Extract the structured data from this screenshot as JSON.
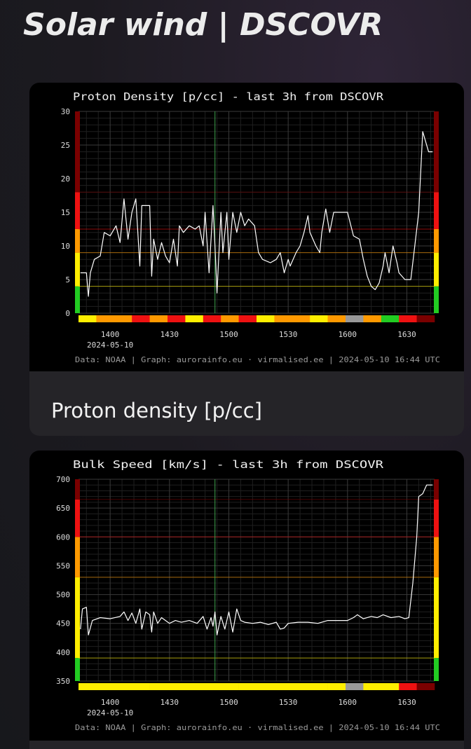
{
  "header": {
    "title": "Solar wind | DSCOVR"
  },
  "cards": [
    {
      "caption": "Proton density [p/cc]"
    }
  ],
  "chart_data": [
    {
      "type": "line",
      "title": "Proton Density [p/cc] - last 3h from DSCOVR",
      "x": [
        825,
        828,
        829,
        830,
        832,
        835,
        837,
        840,
        843,
        845,
        847,
        849,
        851,
        853,
        855,
        856,
        860,
        861,
        862,
        864,
        866,
        868,
        870,
        872,
        874,
        875,
        877,
        880,
        883,
        885,
        887,
        888,
        890,
        892,
        893,
        894,
        896,
        897,
        899,
        900,
        902,
        904,
        906,
        908,
        910,
        913,
        915,
        917,
        921,
        924,
        926,
        928,
        930,
        931,
        934,
        936,
        938,
        940,
        941,
        944,
        946,
        947,
        949,
        951,
        953,
        956,
        960,
        963,
        966,
        968,
        970,
        972,
        974,
        976,
        978,
        979,
        981,
        983,
        985,
        986,
        989,
        992,
        994,
        996,
        998,
        1001,
        1003
      ],
      "values": [
        6,
        6,
        2.5,
        6,
        8,
        8.5,
        12,
        11.5,
        13,
        10.5,
        17,
        11,
        15,
        17,
        7,
        16,
        16,
        5.5,
        11,
        8,
        10.5,
        8.5,
        7.5,
        11,
        7,
        13,
        12,
        13,
        12.5,
        13,
        10,
        15,
        6,
        16,
        10,
        3,
        15,
        9,
        15,
        8,
        15,
        12,
        15,
        13,
        14,
        13,
        9,
        8,
        7.5,
        8,
        9,
        6,
        8,
        7,
        9,
        10,
        12,
        14.5,
        12,
        10,
        9,
        12,
        15.5,
        12,
        15,
        15,
        15,
        11.5,
        11,
        8,
        5.5,
        4,
        3.5,
        4.5,
        7,
        9,
        6,
        10,
        7.5,
        6,
        5,
        5,
        10,
        15,
        27,
        24,
        24
      ],
      "color": "#ffffff",
      "xlim": [
        824,
        1004
      ],
      "xticks": [
        {
          "value": 840,
          "label": "1400"
        },
        {
          "value": 870,
          "label": "1430"
        },
        {
          "value": 900,
          "label": "1500"
        },
        {
          "value": 930,
          "label": "1530"
        },
        {
          "value": 960,
          "label": "1600"
        },
        {
          "value": 990,
          "label": "1630"
        }
      ],
      "date_label": "2024-05-10",
      "ylim": [
        0,
        30
      ],
      "yticks": [
        0,
        5,
        10,
        15,
        20,
        25,
        30
      ],
      "grid": true,
      "thresholds": [
        4,
        9,
        12.5,
        18
      ],
      "zone_colors": [
        "#22cc22",
        "#ffee00",
        "#ff9900",
        "#ee1111",
        "#7a0000"
      ],
      "marker_x": 893,
      "marker_color": "#3fa34d",
      "strip_colors": [
        "#ffee00",
        "#ff9900",
        "#ff9900",
        "#ee1111",
        "#ff9900",
        "#ee1111",
        "#ffee00",
        "#ee1111",
        "#ff9900",
        "#ee1111",
        "#ffee00",
        "#ff9900",
        "#ff9900",
        "#ffee00",
        "#ff9900",
        "#999999",
        "#ff9900",
        "#22cc22",
        "#ee1111",
        "#7a0000"
      ],
      "footer": "Data: NOAA | Graph: aurorainfo.eu · virmalised.ee | 2024-05-10 16:44 UTC"
    },
    {
      "type": "line",
      "title": "Bulk Speed [km/s] - last 3h from DSCOVR",
      "x": [
        825,
        826,
        828,
        829,
        831,
        835,
        840,
        845,
        847,
        849,
        851,
        853,
        855,
        856,
        858,
        860,
        861,
        862,
        864,
        866,
        868,
        870,
        873,
        876,
        880,
        884,
        887,
        889,
        891,
        892,
        893,
        894,
        896,
        898,
        900,
        902,
        904,
        906,
        908,
        912,
        916,
        920,
        924,
        926,
        928,
        930,
        935,
        940,
        945,
        950,
        955,
        960,
        963,
        965,
        968,
        972,
        975,
        978,
        982,
        986,
        989,
        991,
        993,
        995,
        996,
        998,
        1000,
        1003
      ],
      "values": [
        440,
        475,
        478,
        430,
        455,
        460,
        458,
        462,
        470,
        455,
        468,
        450,
        475,
        440,
        470,
        465,
        435,
        470,
        450,
        460,
        455,
        450,
        455,
        452,
        455,
        450,
        462,
        440,
        460,
        445,
        470,
        430,
        462,
        440,
        470,
        435,
        475,
        455,
        452,
        450,
        452,
        448,
        452,
        440,
        442,
        450,
        452,
        452,
        450,
        455,
        455,
        455,
        460,
        465,
        458,
        462,
        460,
        465,
        460,
        462,
        458,
        460,
        520,
        600,
        670,
        675,
        690,
        690
      ],
      "color": "#ffffff",
      "xlim": [
        824,
        1004
      ],
      "xticks": [
        {
          "value": 840,
          "label": "1400"
        },
        {
          "value": 870,
          "label": "1430"
        },
        {
          "value": 900,
          "label": "1500"
        },
        {
          "value": 930,
          "label": "1530"
        },
        {
          "value": 960,
          "label": "1600"
        },
        {
          "value": 990,
          "label": "1630"
        }
      ],
      "date_label": "2024-05-10",
      "ylim": [
        350,
        700
      ],
      "yticks": [
        350,
        400,
        450,
        500,
        550,
        600,
        650,
        700
      ],
      "grid": true,
      "thresholds": [
        390,
        530,
        600,
        665
      ],
      "zone_colors": [
        "#22cc22",
        "#ffee00",
        "#ff9900",
        "#ee1111",
        "#7a0000"
      ],
      "marker_x": 893,
      "marker_color": "#3fa34d",
      "strip_colors": [
        "#ffee00",
        "#ffee00",
        "#ffee00",
        "#ffee00",
        "#ffee00",
        "#ffee00",
        "#ffee00",
        "#ffee00",
        "#ffee00",
        "#ffee00",
        "#ffee00",
        "#ffee00",
        "#ffee00",
        "#ffee00",
        "#ffee00",
        "#999999",
        "#ffee00",
        "#ffee00",
        "#ee1111",
        "#7a0000"
      ],
      "footer": "Data: NOAA | Graph: aurorainfo.eu · virmalised.ee | 2024-05-10 16:44 UTC"
    }
  ]
}
